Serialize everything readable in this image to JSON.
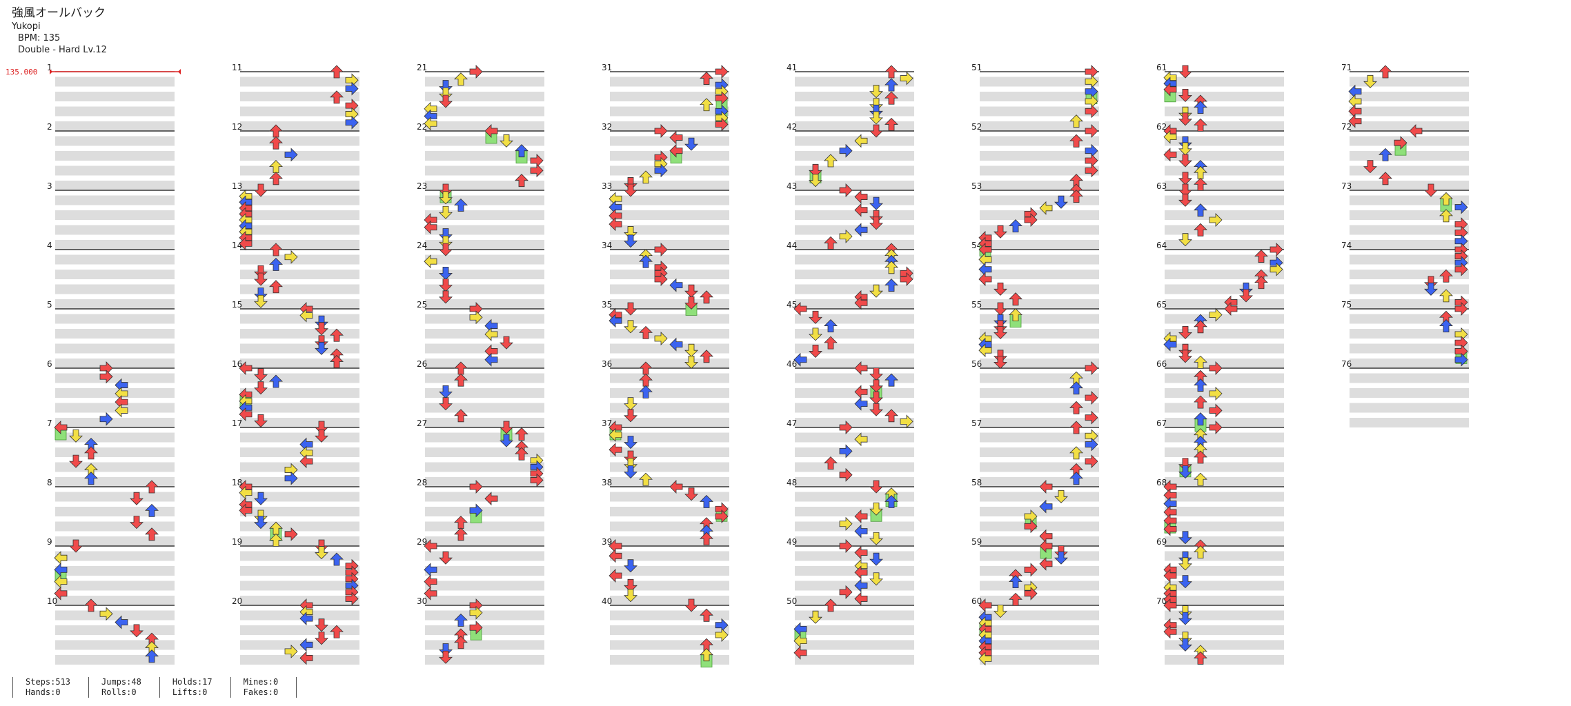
{
  "song": {
    "title": "強風オールバック",
    "artist": "Yukopi",
    "bpm_label": "BPM: 135",
    "chart_label": "Double - Hard  Lv.12"
  },
  "bpm_marker": "135.000",
  "stats": [
    {
      "top": "Steps:513",
      "bottom": "Hands:0"
    },
    {
      "top": "Jumps:48",
      "bottom": "Rolls:0"
    },
    {
      "top": "Holds:17",
      "bottom": "Lifts:0"
    },
    {
      "top": "Mines:0",
      "bottom": "Fakes:0"
    }
  ],
  "colors": {
    "quarter": "#f04a4a",
    "eighth": "#3b63f0",
    "sixteenth": "#f2df44",
    "hold": "#8fe07a",
    "stripe": "#dddddd",
    "measure_line": "#111111",
    "bpm": "#dd2222"
  },
  "measure_count": 76
}
